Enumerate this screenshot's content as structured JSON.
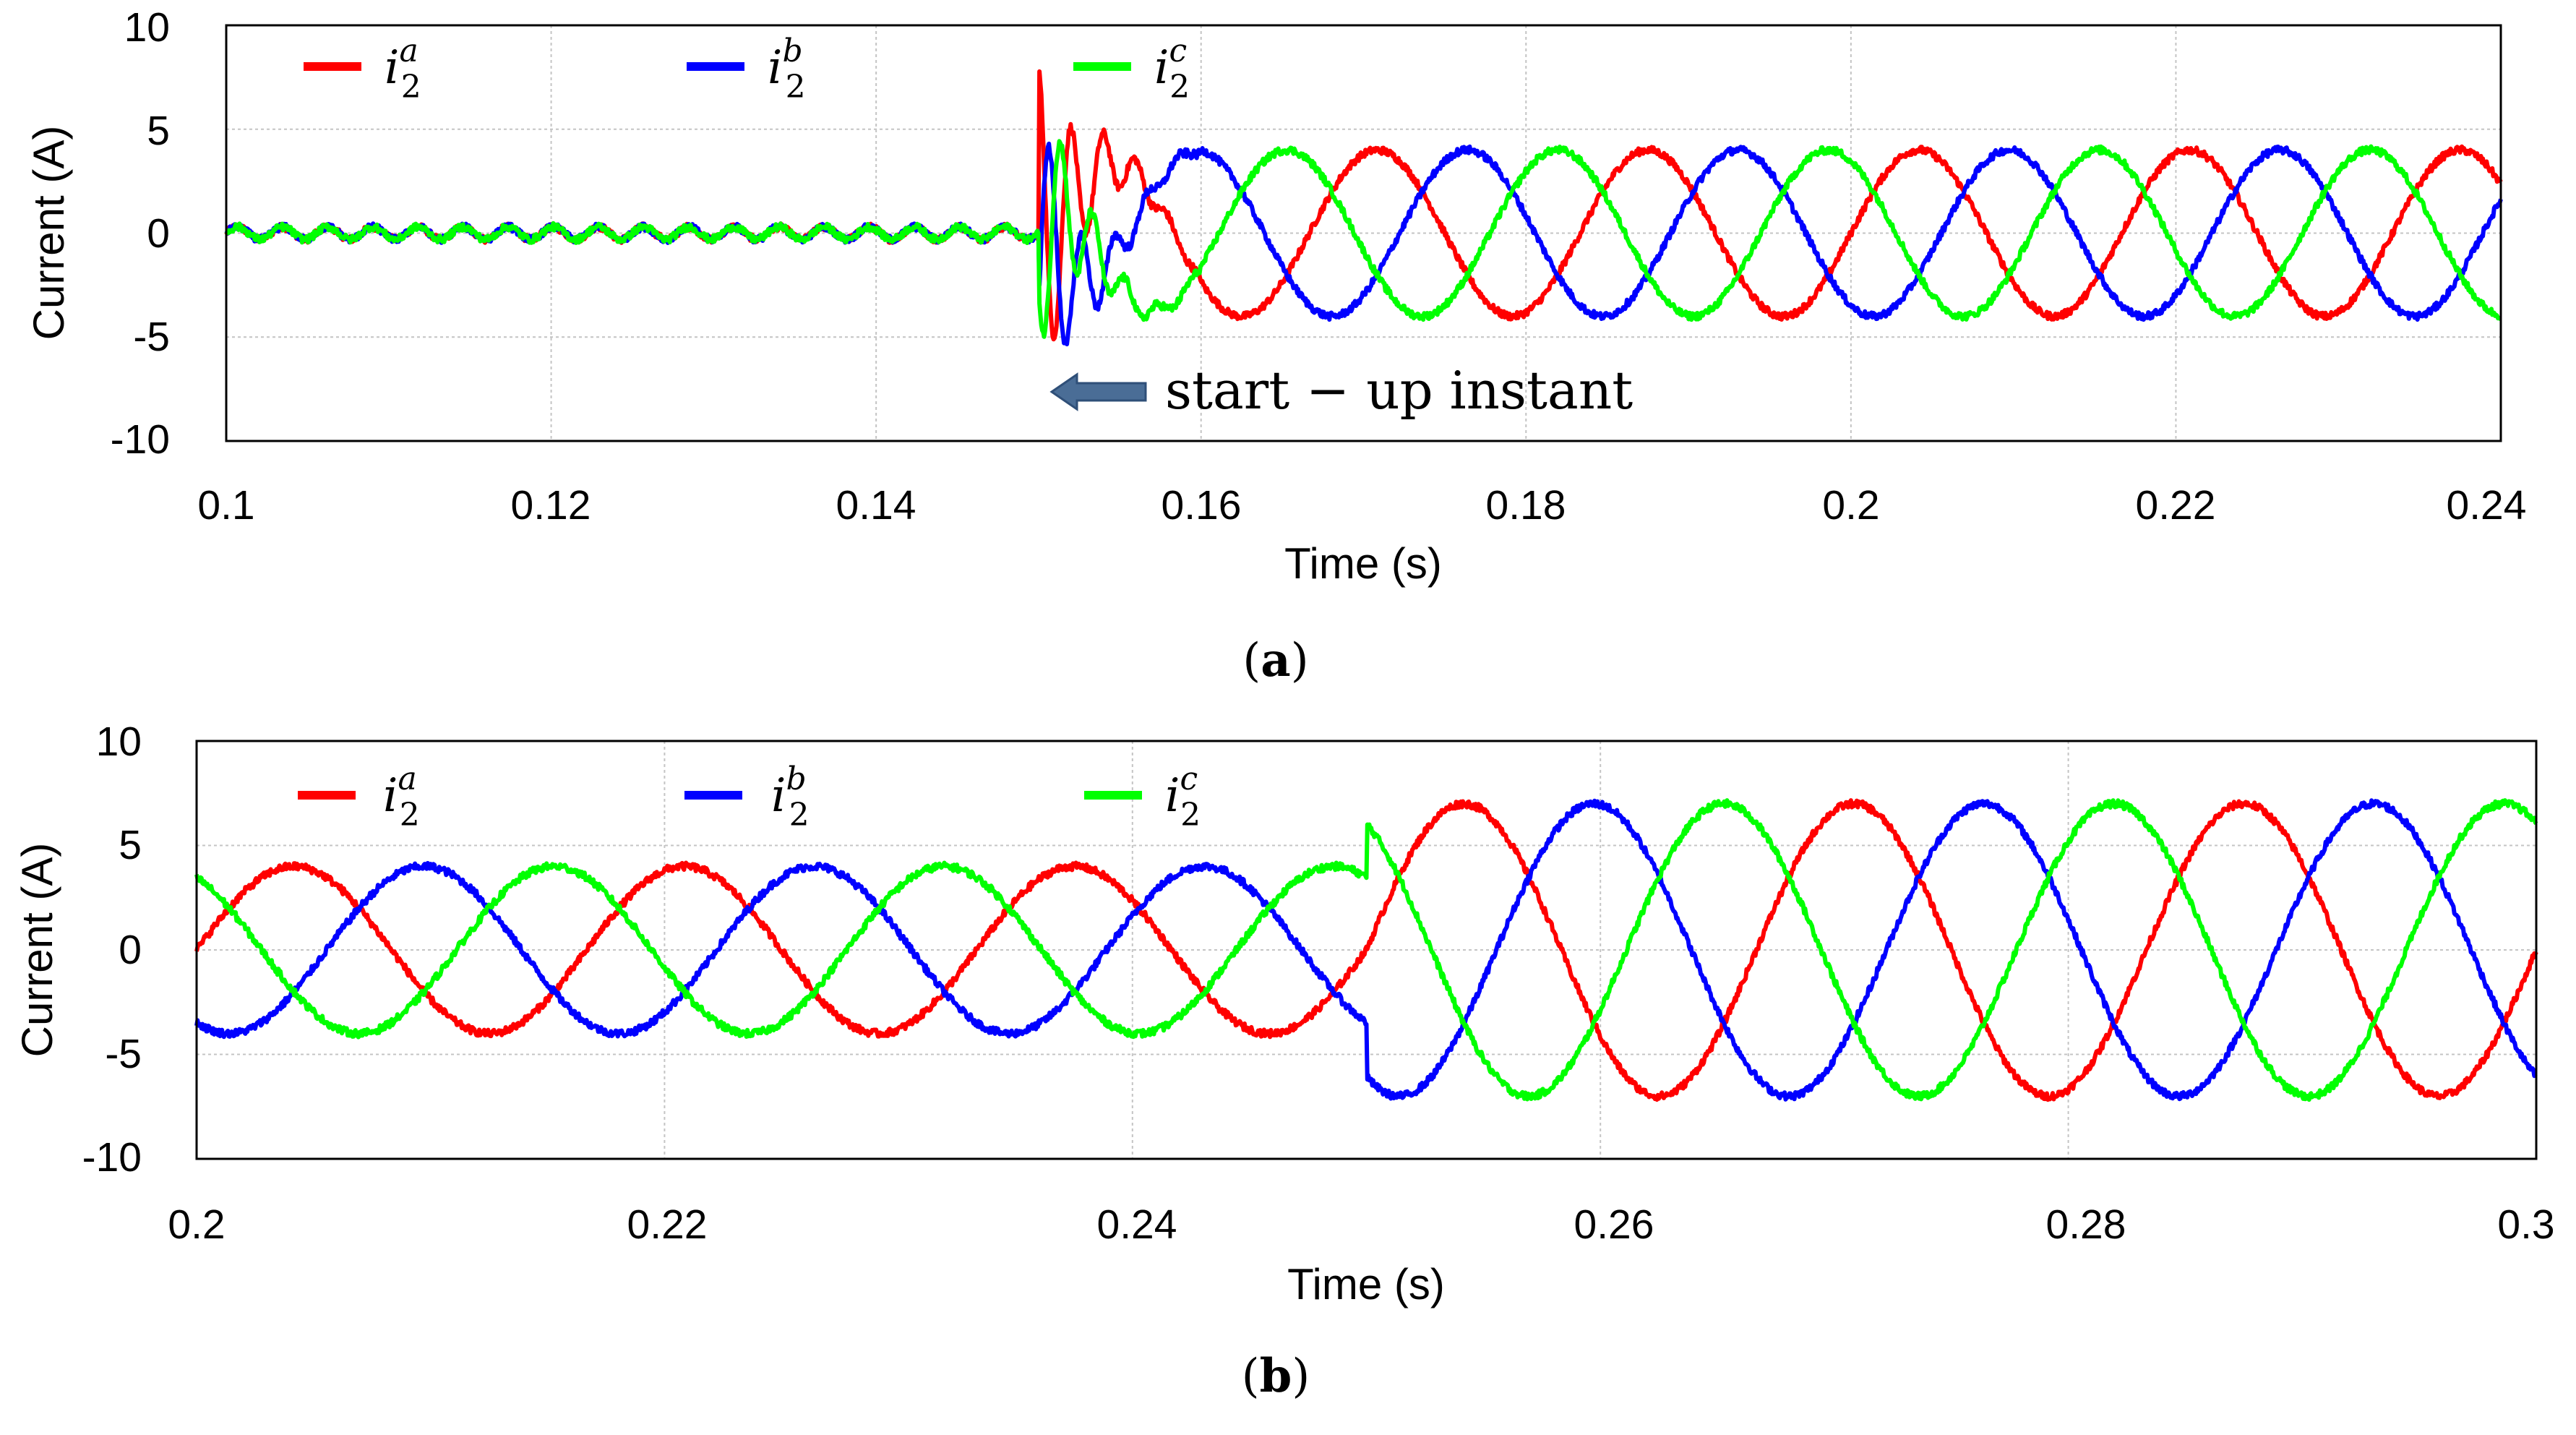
{
  "chart_data": [
    {
      "type": "line",
      "panel": "a",
      "caption_label": "a",
      "xlabel": "Time (s)",
      "ylabel": "Current (A)",
      "xlim": [
        0.1,
        0.24
      ],
      "ylim": [
        -10,
        10
      ],
      "xticks": [
        "0.1",
        "0.12",
        "0.14",
        "0.16",
        "0.18",
        "0.2",
        "0.22",
        "0.24"
      ],
      "yticks": [
        "10",
        "5",
        "0",
        "-5",
        "-10"
      ],
      "grid": true,
      "legend_position": "top",
      "legend": [
        {
          "base": "i",
          "sub": "2",
          "sup": "a",
          "color": "#ff0000"
        },
        {
          "base": "i",
          "sub": "2",
          "sup": "b",
          "color": "#0000ff"
        },
        {
          "base": "i",
          "sub": "2",
          "sup": "c",
          "color": "#00ff00"
        }
      ],
      "series": [
        {
          "name": "i2a",
          "color": "#ff0000",
          "phase_deg": 0
        },
        {
          "name": "i2b",
          "color": "#0000ff",
          "phase_deg": -120
        },
        {
          "name": "i2c",
          "color": "#00ff00",
          "phase_deg": 120
        }
      ],
      "frequency_hz": 60,
      "segments": [
        {
          "t_start": 0.1,
          "t_end": 0.15,
          "amplitude": 0.3,
          "note": "inverter off, small noise"
        },
        {
          "t_start": 0.15,
          "t_end": 0.16,
          "amplitude": 4.0,
          "note": "start-up transient, peaks ~8 and ~-6.5"
        },
        {
          "t_start": 0.16,
          "t_end": 0.24,
          "amplitude": 4.0,
          "note": "steady state"
        }
      ],
      "annotation": {
        "text": "start − up instant",
        "points_to_x": 0.15,
        "y": -8
      }
    },
    {
      "type": "line",
      "panel": "b",
      "caption_label": "b",
      "xlabel": "Time (s)",
      "ylabel": "Current (A)",
      "xlim": [
        0.2,
        0.3
      ],
      "ylim": [
        -10,
        10
      ],
      "xticks": [
        "0.2",
        "0.22",
        "0.24",
        "0.26",
        "0.28",
        "0.3"
      ],
      "yticks": [
        "10",
        "5",
        "0",
        "-5",
        "-10"
      ],
      "grid": true,
      "legend_position": "top",
      "legend": [
        {
          "base": "i",
          "sub": "2",
          "sup": "a",
          "color": "#ff0000"
        },
        {
          "base": "i",
          "sub": "2",
          "sup": "b",
          "color": "#0000ff"
        },
        {
          "base": "i",
          "sub": "2",
          "sup": "c",
          "color": "#00ff00"
        }
      ],
      "series": [
        {
          "name": "i2a",
          "color": "#ff0000",
          "phase_deg": 0
        },
        {
          "name": "i2b",
          "color": "#0000ff",
          "phase_deg": -120
        },
        {
          "name": "i2c",
          "color": "#00ff00",
          "phase_deg": 120
        }
      ],
      "frequency_hz": 60,
      "segments": [
        {
          "t_start": 0.2,
          "t_end": 0.25,
          "amplitude": 4.0,
          "note": "steady state"
        },
        {
          "t_start": 0.25,
          "t_end": 0.3,
          "amplitude": 7.0,
          "note": "after step increase"
        }
      ]
    }
  ]
}
